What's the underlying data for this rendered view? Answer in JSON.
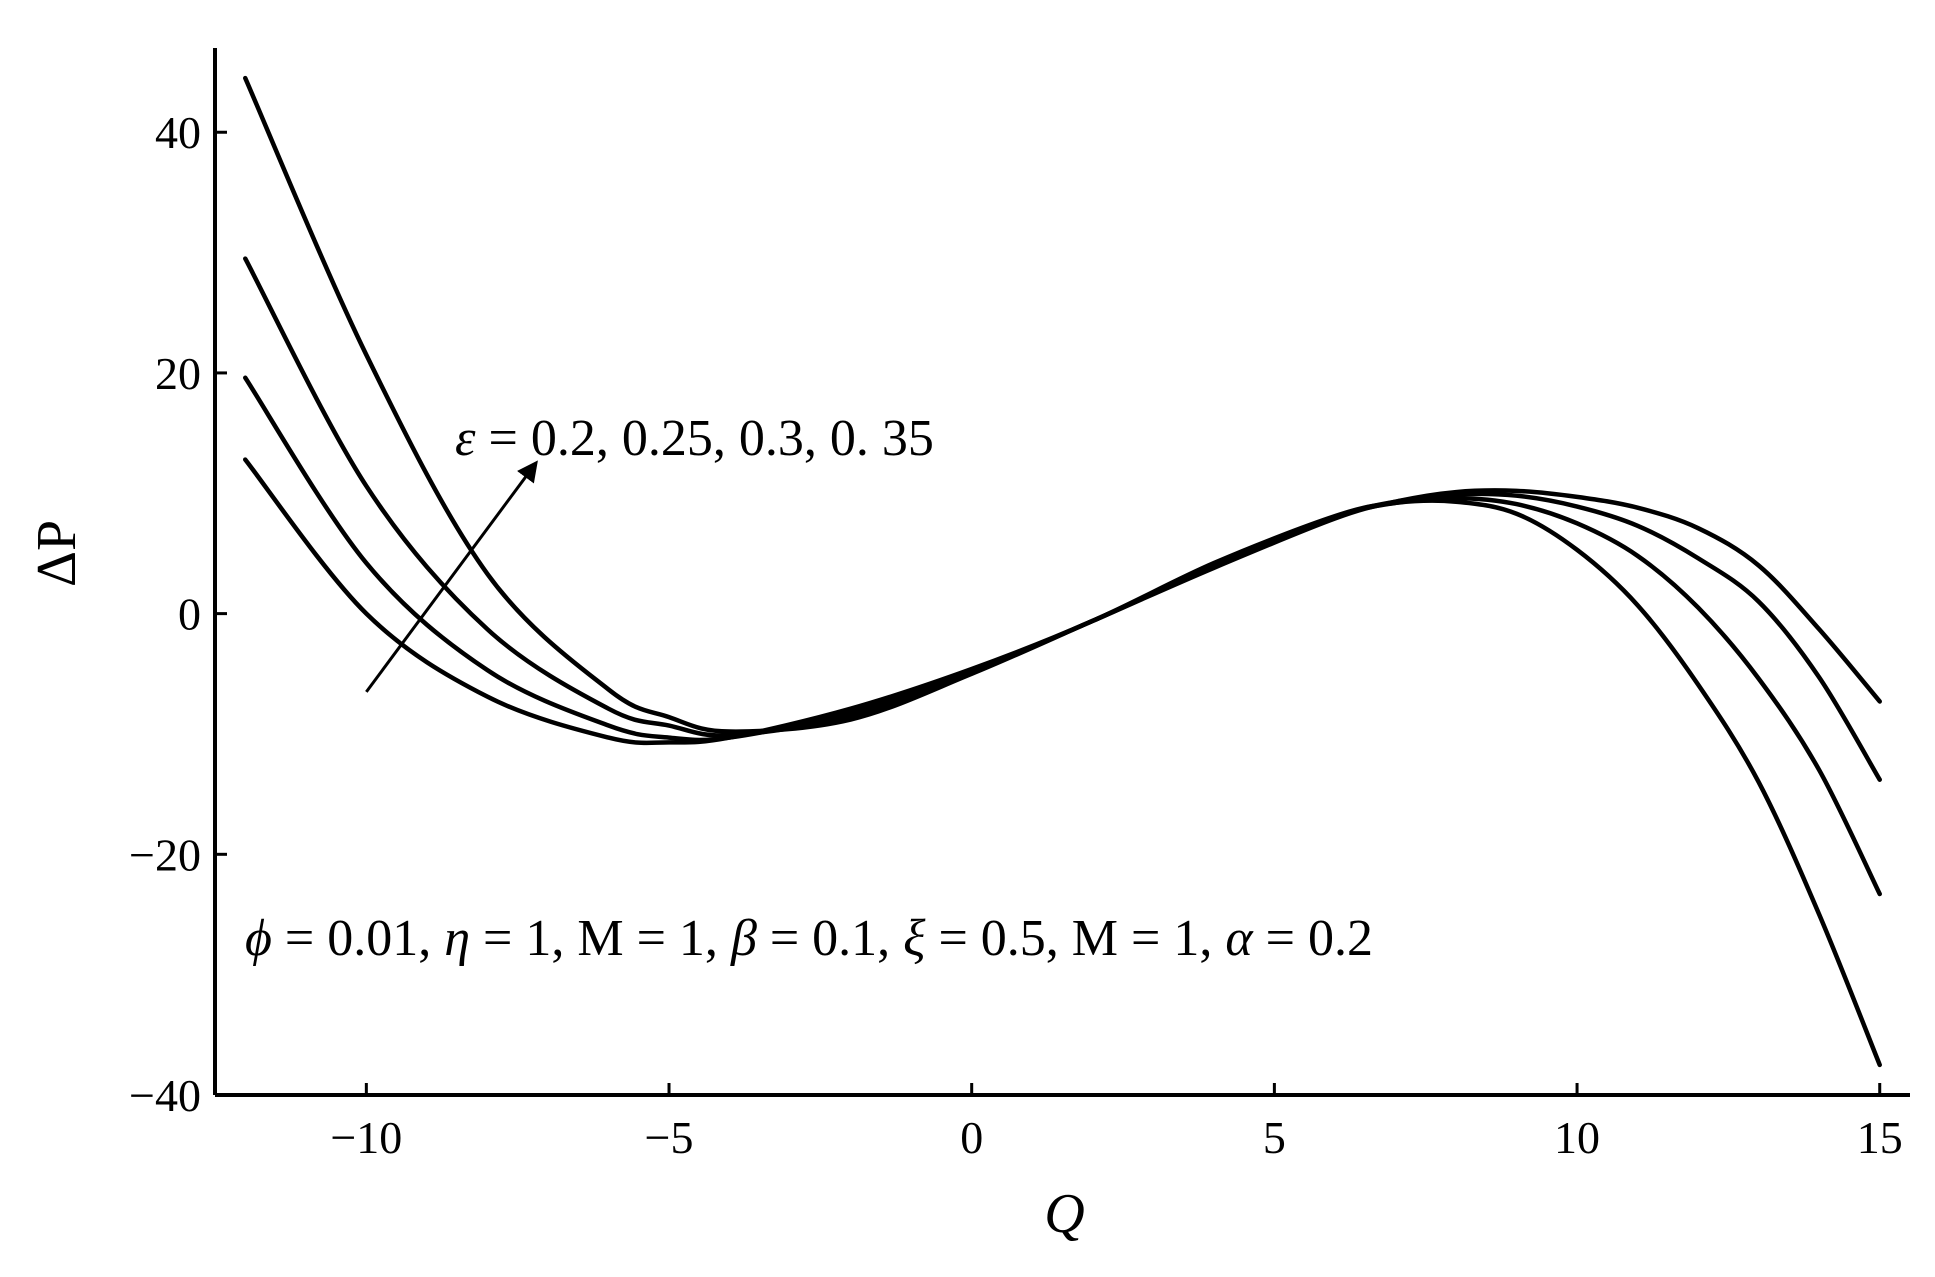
{
  "chart_data": {
    "type": "line",
    "title": "",
    "xlabel": "Q",
    "ylabel": "ΔP",
    "xlim": [
      -12.5,
      15.5
    ],
    "ylim": [
      -40,
      47
    ],
    "x_ticks": [
      {
        "value": -10,
        "label": "−10"
      },
      {
        "value": -5,
        "label": "−5"
      },
      {
        "value": 0,
        "label": "0"
      },
      {
        "value": 5,
        "label": "5"
      },
      {
        "value": 10,
        "label": "10"
      },
      {
        "value": 15,
        "label": "15"
      }
    ],
    "y_ticks": [
      {
        "value": -40,
        "label": "−40"
      },
      {
        "value": -20,
        "label": "−20"
      },
      {
        "value": 0,
        "label": "0"
      },
      {
        "value": 20,
        "label": "20"
      },
      {
        "value": 40,
        "label": "40"
      }
    ],
    "grid": false,
    "series": [
      {
        "x": [
          -12,
          -10,
          -8,
          -6,
          -5,
          -4,
          -2,
          0,
          2,
          4,
          6,
          7,
          8,
          9,
          10,
          11,
          12,
          13,
          14,
          15
        ],
        "values": [
          12.8,
          0.0,
          -6.9,
          -10.3,
          -10.7,
          -10.3,
          -7.9,
          -4.6,
          -0.6,
          4.2,
          8.1,
          9.2,
          9.3,
          8.3,
          5.3,
          0.7,
          -5.9,
          -14.0,
          -25.0,
          -37.5
        ]
      },
      {
        "x": [
          -12,
          -10,
          -8,
          -6,
          -5,
          -4,
          -2,
          0,
          2,
          4,
          6,
          7,
          8,
          9,
          10,
          11,
          12,
          13,
          14,
          15
        ],
        "values": [
          19.6,
          4.2,
          -4.7,
          -9.3,
          -10.3,
          -10.3,
          -8.2,
          -4.8,
          -0.6,
          4.0,
          8.0,
          9.2,
          9.6,
          9.1,
          7.5,
          4.8,
          0.5,
          -5.4,
          -13.0,
          -23.3
        ]
      },
      {
        "x": [
          -12,
          -10,
          -8,
          -6,
          -5,
          -4,
          -2,
          0,
          2,
          4,
          6,
          7,
          8,
          9,
          10,
          11,
          12,
          13,
          14,
          15
        ],
        "values": [
          29.5,
          10.6,
          -1.3,
          -7.9,
          -9.3,
          -10.1,
          -8.5,
          -4.9,
          -0.6,
          3.9,
          8.0,
          9.3,
          9.9,
          9.8,
          8.9,
          7.3,
          4.6,
          1.0,
          -5.3,
          -13.8
        ]
      },
      {
        "x": [
          -12,
          -10,
          -8,
          -6,
          -5,
          -4,
          -2,
          0,
          2,
          4,
          6,
          7,
          8,
          9,
          10,
          11,
          12,
          13,
          14,
          15
        ],
        "values": [
          44.5,
          21.5,
          3.3,
          -6.3,
          -8.6,
          -9.8,
          -8.8,
          -5.0,
          -0.6,
          3.8,
          7.9,
          9.3,
          10.1,
          10.2,
          9.7,
          8.8,
          7.1,
          4.0,
          -1.3,
          -7.3
        ]
      }
    ],
    "annotations": {
      "epsilon_symbol": "ε",
      "epsilon_values": " = 0.2, 0.25, 0.3, 0. 35",
      "params": [
        {
          "sym": "ϕ",
          "text": "  = 0.01, "
        },
        {
          "sym": "η",
          "text": " = 1, M = 1, "
        },
        {
          "sym": "β",
          "text": " = 0.1, "
        },
        {
          "sym": "ξ",
          "text": " = 0.5, M = 1, "
        },
        {
          "sym": "α",
          "text": " = 0.2"
        }
      ],
      "arrow_from": {
        "x": -10.0,
        "y": -6.5
      },
      "arrow_to": {
        "x": -7.2,
        "y": 12.5
      }
    }
  }
}
